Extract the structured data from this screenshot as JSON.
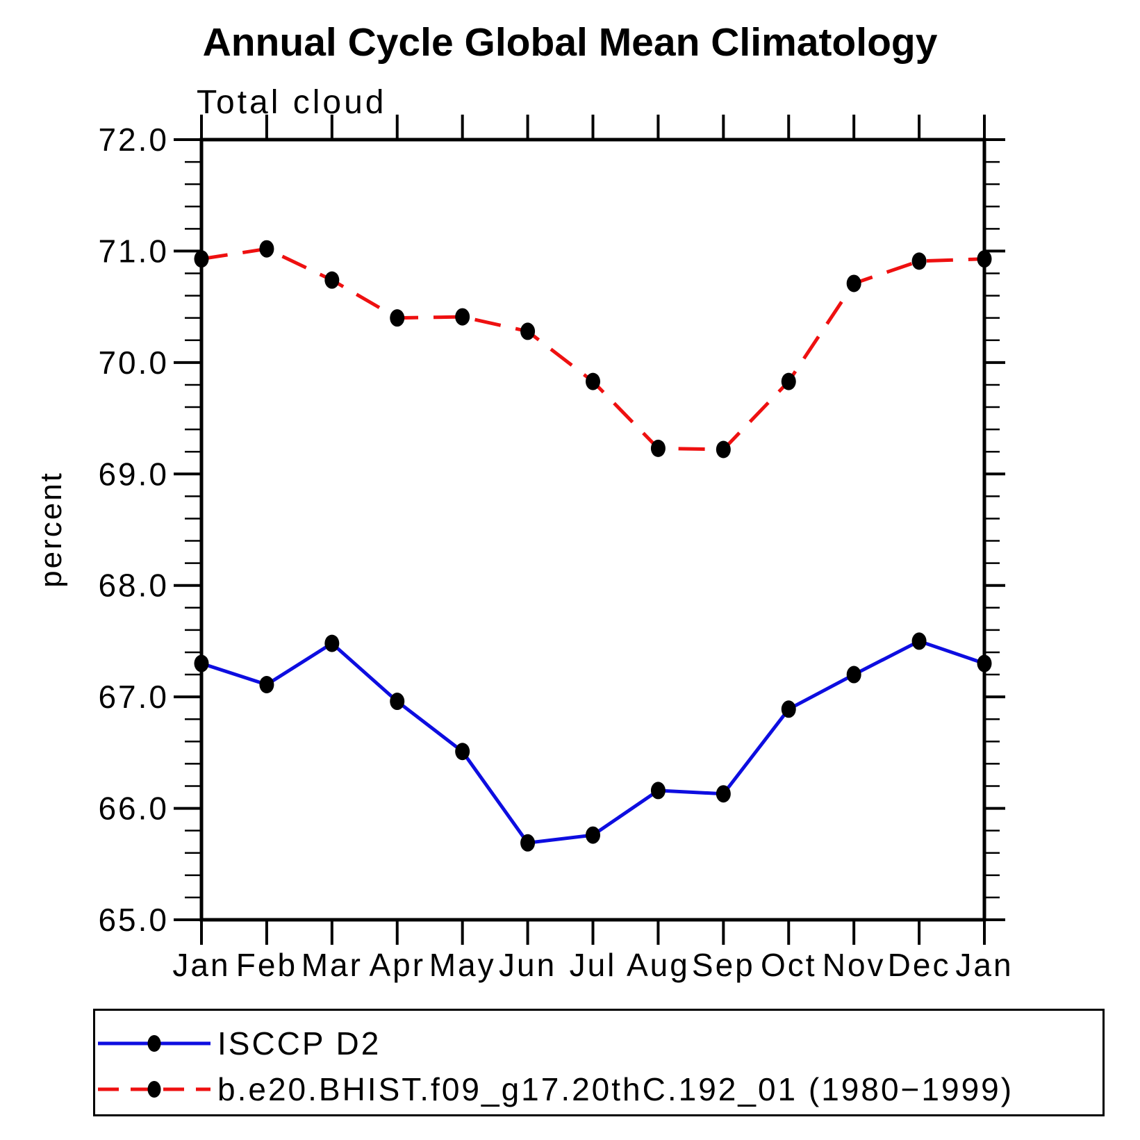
{
  "chart_data": {
    "type": "line",
    "title": "Annual Cycle Global Mean Climatology",
    "subtitle_left": "Total cloud",
    "ylabel": "percent",
    "x_categories": [
      "Jan",
      "Feb",
      "Mar",
      "Apr",
      "May",
      "Jun",
      "Jul",
      "Aug",
      "Sep",
      "Oct",
      "Nov",
      "Dec",
      "Jan"
    ],
    "ylim": [
      65.0,
      72.0
    ],
    "ytick_major_step": 1.0,
    "ytick_minor_step": 0.2,
    "ytick_labels": [
      "65.0",
      "66.0",
      "67.0",
      "68.0",
      "69.0",
      "70.0",
      "71.0",
      "72.0"
    ],
    "grid": false,
    "legend_position": "bottom",
    "series": [
      {
        "name": "ISCCP D2",
        "color": "#0d0de0",
        "line_style": "solid",
        "marker": "filled-dot",
        "marker_color": "#000000",
        "values": [
          67.3,
          67.11,
          67.48,
          66.96,
          66.51,
          65.69,
          65.76,
          66.16,
          66.13,
          66.89,
          67.2,
          67.5,
          67.3
        ]
      },
      {
        "name": "b.e20.BHIST.f09_g17.20thC.192_01 (1980−1999)",
        "color": "#ee1010",
        "line_style": "dashed",
        "marker": "filled-dot",
        "marker_color": "#000000",
        "values": [
          70.93,
          71.02,
          70.74,
          70.4,
          70.41,
          70.28,
          69.83,
          69.23,
          69.22,
          69.83,
          70.71,
          70.91,
          70.93
        ]
      }
    ]
  }
}
